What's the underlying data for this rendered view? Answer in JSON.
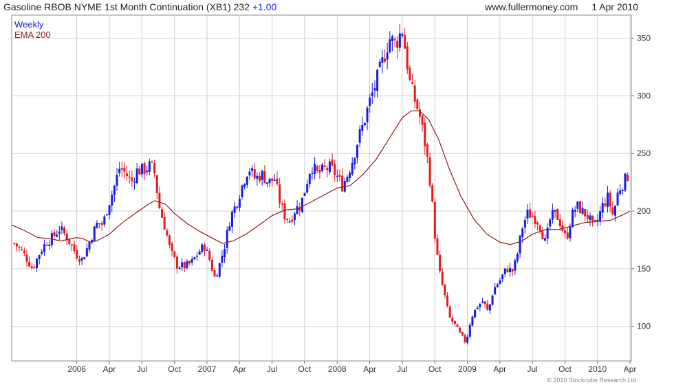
{
  "header": {
    "title": "Gasoline RBOB NYME 1st Month Continuation (XB1)",
    "last": "232",
    "change": "+1.00",
    "site": "www.fullermoney.com",
    "date": "1 Apr 2010"
  },
  "legend": {
    "weekly": "Weekly",
    "ema": "EMA 200"
  },
  "copyright": "© 2010 Stockcube Research Ltd",
  "chart_data": {
    "type": "candlestick",
    "frequency": "Weekly",
    "y_axis": {
      "side": "right",
      "range": [
        70,
        370
      ],
      "ticks": [
        100,
        150,
        200,
        250,
        300,
        350
      ]
    },
    "x_axis": {
      "range_years": [
        2005.5,
        2010.26
      ],
      "ticks": [
        {
          "label": "2006",
          "t": 2006.0
        },
        {
          "label": "Apr",
          "t": 2006.25
        },
        {
          "label": "Jul",
          "t": 2006.5
        },
        {
          "label": "Oct",
          "t": 2006.75
        },
        {
          "label": "2007",
          "t": 2007.0
        },
        {
          "label": "Apr",
          "t": 2007.25
        },
        {
          "label": "Jul",
          "t": 2007.5
        },
        {
          "label": "Oct",
          "t": 2007.75
        },
        {
          "label": "2008",
          "t": 2008.0
        },
        {
          "label": "Apr",
          "t": 2008.25
        },
        {
          "label": "Jul",
          "t": 2008.5
        },
        {
          "label": "Oct",
          "t": 2008.75
        },
        {
          "label": "2009",
          "t": 2009.0
        },
        {
          "label": "Apr",
          "t": 2009.25
        },
        {
          "label": "Jul",
          "t": 2009.5
        },
        {
          "label": "Oct",
          "t": 2009.75
        },
        {
          "label": "2010",
          "t": 2010.0
        },
        {
          "label": "Apr",
          "t": 2010.25
        }
      ]
    },
    "price_path": [
      [
        2005.52,
        172
      ],
      [
        2005.58,
        165
      ],
      [
        2005.62,
        158
      ],
      [
        2005.66,
        150
      ],
      [
        2005.72,
        165
      ],
      [
        2005.76,
        172
      ],
      [
        2005.82,
        178
      ],
      [
        2005.87,
        185
      ],
      [
        2005.92,
        178
      ],
      [
        2005.96,
        170
      ],
      [
        2006.0,
        162
      ],
      [
        2006.04,
        158
      ],
      [
        2006.08,
        168
      ],
      [
        2006.12,
        180
      ],
      [
        2006.16,
        190
      ],
      [
        2006.2,
        188
      ],
      [
        2006.24,
        205
      ],
      [
        2006.28,
        218
      ],
      [
        2006.33,
        238
      ],
      [
        2006.38,
        232
      ],
      [
        2006.42,
        225
      ],
      [
        2006.46,
        235
      ],
      [
        2006.52,
        236
      ],
      [
        2006.57,
        240
      ],
      [
        2006.6,
        232
      ],
      [
        2006.63,
        205
      ],
      [
        2006.68,
        185
      ],
      [
        2006.72,
        165
      ],
      [
        2006.77,
        153
      ],
      [
        2006.83,
        152
      ],
      [
        2006.88,
        155
      ],
      [
        2006.94,
        165
      ],
      [
        2006.98,
        170
      ],
      [
        2007.02,
        158
      ],
      [
        2007.06,
        142
      ],
      [
        2007.1,
        155
      ],
      [
        2007.14,
        172
      ],
      [
        2007.18,
        195
      ],
      [
        2007.22,
        205
      ],
      [
        2007.27,
        222
      ],
      [
        2007.32,
        238
      ],
      [
        2007.37,
        228
      ],
      [
        2007.42,
        232
      ],
      [
        2007.47,
        225
      ],
      [
        2007.52,
        228
      ],
      [
        2007.56,
        208
      ],
      [
        2007.6,
        195
      ],
      [
        2007.64,
        192
      ],
      [
        2007.68,
        202
      ],
      [
        2007.72,
        205
      ],
      [
        2007.76,
        222
      ],
      [
        2007.8,
        240
      ],
      [
        2007.85,
        232
      ],
      [
        2007.9,
        236
      ],
      [
        2007.95,
        238
      ],
      [
        2008.0,
        230
      ],
      [
        2008.04,
        222
      ],
      [
        2008.08,
        232
      ],
      [
        2008.12,
        245
      ],
      [
        2008.16,
        262
      ],
      [
        2008.2,
        275
      ],
      [
        2008.25,
        295
      ],
      [
        2008.3,
        312
      ],
      [
        2008.35,
        330
      ],
      [
        2008.4,
        350
      ],
      [
        2008.45,
        345
      ],
      [
        2008.5,
        358
      ],
      [
        2008.53,
        335
      ],
      [
        2008.56,
        310
      ],
      [
        2008.6,
        295
      ],
      [
        2008.63,
        285
      ],
      [
        2008.67,
        262
      ],
      [
        2008.7,
        240
      ],
      [
        2008.72,
        220
      ],
      [
        2008.75,
        180
      ],
      [
        2008.78,
        150
      ],
      [
        2008.82,
        130
      ],
      [
        2008.86,
        108
      ],
      [
        2008.9,
        102
      ],
      [
        2008.95,
        92
      ],
      [
        2008.99,
        86
      ],
      [
        2009.03,
        108
      ],
      [
        2009.08,
        118
      ],
      [
        2009.12,
        122
      ],
      [
        2009.16,
        112
      ],
      [
        2009.2,
        132
      ],
      [
        2009.25,
        140
      ],
      [
        2009.3,
        150
      ],
      [
        2009.35,
        148
      ],
      [
        2009.38,
        160
      ],
      [
        2009.42,
        185
      ],
      [
        2009.46,
        198
      ],
      [
        2009.5,
        196
      ],
      [
        2009.55,
        190
      ],
      [
        2009.6,
        172
      ],
      [
        2009.64,
        195
      ],
      [
        2009.68,
        198
      ],
      [
        2009.72,
        188
      ],
      [
        2009.76,
        175
      ],
      [
        2009.8,
        195
      ],
      [
        2009.84,
        205
      ],
      [
        2009.88,
        200
      ],
      [
        2009.93,
        195
      ],
      [
        2009.97,
        185
      ],
      [
        2010.0,
        192
      ],
      [
        2010.04,
        205
      ],
      [
        2010.08,
        212
      ],
      [
        2010.12,
        196
      ],
      [
        2010.16,
        218
      ],
      [
        2010.2,
        225
      ],
      [
        2010.24,
        232
      ]
    ],
    "ema200": [
      [
        2005.5,
        188
      ],
      [
        2005.6,
        183
      ],
      [
        2005.7,
        177
      ],
      [
        2005.8,
        176
      ],
      [
        2005.88,
        174
      ],
      [
        2005.95,
        176
      ],
      [
        2006.0,
        177
      ],
      [
        2006.05,
        176
      ],
      [
        2006.1,
        173
      ],
      [
        2006.15,
        174
      ],
      [
        2006.25,
        180
      ],
      [
        2006.35,
        190
      ],
      [
        2006.45,
        198
      ],
      [
        2006.55,
        206
      ],
      [
        2006.6,
        209
      ],
      [
        2006.68,
        206
      ],
      [
        2006.75,
        198
      ],
      [
        2006.85,
        189
      ],
      [
        2006.95,
        182
      ],
      [
        2007.05,
        176
      ],
      [
        2007.12,
        172
      ],
      [
        2007.2,
        174
      ],
      [
        2007.3,
        180
      ],
      [
        2007.4,
        188
      ],
      [
        2007.5,
        196
      ],
      [
        2007.6,
        201
      ],
      [
        2007.7,
        202
      ],
      [
        2007.8,
        208
      ],
      [
        2007.9,
        214
      ],
      [
        2008.0,
        220
      ],
      [
        2008.1,
        222
      ],
      [
        2008.2,
        232
      ],
      [
        2008.3,
        245
      ],
      [
        2008.4,
        263
      ],
      [
        2008.5,
        281
      ],
      [
        2008.57,
        287
      ],
      [
        2008.63,
        287
      ],
      [
        2008.7,
        280
      ],
      [
        2008.78,
        262
      ],
      [
        2008.86,
        237
      ],
      [
        2008.95,
        213
      ],
      [
        2009.05,
        193
      ],
      [
        2009.15,
        180
      ],
      [
        2009.25,
        173
      ],
      [
        2009.33,
        171
      ],
      [
        2009.42,
        174
      ],
      [
        2009.5,
        180
      ],
      [
        2009.6,
        184
      ],
      [
        2009.7,
        184
      ],
      [
        2009.8,
        187
      ],
      [
        2009.9,
        190
      ],
      [
        2010.0,
        191
      ],
      [
        2010.1,
        192
      ],
      [
        2010.2,
        197
      ],
      [
        2010.25,
        200
      ]
    ]
  }
}
